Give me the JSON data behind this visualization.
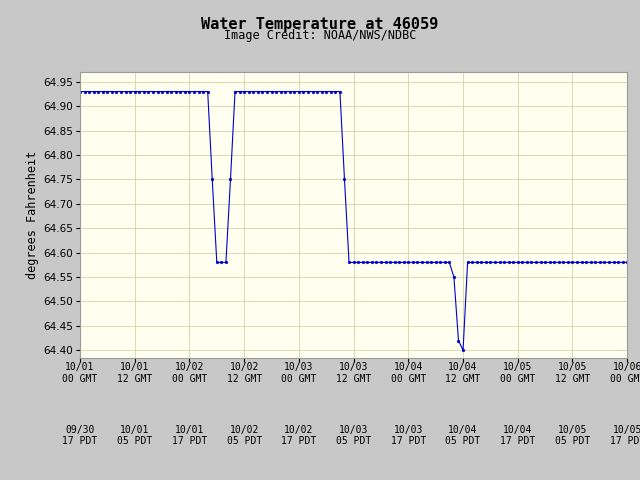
{
  "title": "Water Temperature at 46059",
  "subtitle": "Image Credit: NOAA/NWS/NDBC",
  "ylabel": "degrees Fahrenheit",
  "bg_color": "#fffff0",
  "outer_bg": "#c8c8c8",
  "line_color": "#0000cc",
  "marker": "o",
  "markersize": 2.0,
  "ylim": [
    64.385,
    64.97
  ],
  "yticks": [
    64.4,
    64.45,
    64.5,
    64.55,
    64.6,
    64.65,
    64.7,
    64.75,
    64.8,
    64.85,
    64.9,
    64.95
  ],
  "xtick_labels_gmt": [
    "10/01\n00 GMT",
    "10/01\n12 GMT",
    "10/02\n00 GMT",
    "10/02\n12 GMT",
    "10/03\n00 GMT",
    "10/03\n12 GMT",
    "10/04\n00 GMT",
    "10/04\n12 GMT",
    "10/05\n00 GMT",
    "10/05\n12 GMT",
    "10/06\n00 GMT"
  ],
  "xtick_labels_pdt": [
    "09/30\n17 PDT",
    "10/01\n05 PDT",
    "10/01\n17 PDT",
    "10/02\n05 PDT",
    "10/02\n17 PDT",
    "10/03\n05 PDT",
    "10/03\n17 PDT",
    "10/04\n05 PDT",
    "10/04\n17 PDT",
    "10/05\n05 PDT",
    "10/05\n17 PDT"
  ],
  "x_all": [
    0,
    1,
    2,
    3,
    4,
    5,
    6,
    7,
    8,
    9,
    10,
    11,
    12,
    13,
    14,
    15,
    16,
    17,
    18,
    19,
    20,
    21,
    22,
    23,
    24,
    25,
    26,
    27,
    28,
    29,
    30,
    31,
    32,
    33,
    34,
    35,
    36,
    37,
    38,
    39,
    40,
    41,
    42,
    43,
    44,
    45,
    46,
    47,
    48,
    49,
    50,
    51,
    52,
    53,
    54,
    55,
    56,
    57,
    58,
    59,
    60,
    61,
    62,
    63,
    64,
    65,
    66,
    67,
    68,
    69,
    70,
    71,
    72,
    73,
    74,
    75,
    76,
    77,
    78,
    79,
    80,
    81,
    82,
    83,
    84,
    85,
    86,
    87,
    88,
    89,
    90,
    91,
    92,
    93,
    94,
    95,
    96,
    97,
    98,
    99,
    100,
    101,
    102,
    103,
    104,
    105,
    106,
    107,
    108,
    109,
    110,
    111,
    112,
    113,
    114,
    115,
    116,
    117,
    118,
    119,
    120
  ],
  "y_all": [
    64.93,
    64.93,
    64.93,
    64.93,
    64.93,
    64.93,
    64.93,
    64.93,
    64.93,
    64.93,
    64.93,
    64.93,
    64.93,
    64.93,
    64.93,
    64.93,
    64.93,
    64.93,
    64.93,
    64.93,
    64.93,
    64.93,
    64.93,
    64.93,
    64.93,
    64.93,
    64.93,
    64.93,
    64.93,
    64.75,
    64.58,
    64.58,
    64.58,
    64.75,
    64.93,
    64.93,
    64.93,
    64.93,
    64.93,
    64.93,
    64.93,
    64.93,
    64.93,
    64.93,
    64.93,
    64.93,
    64.93,
    64.93,
    64.93,
    64.93,
    64.93,
    64.93,
    64.93,
    64.93,
    64.93,
    64.93,
    64.93,
    64.93,
    64.75,
    64.58,
    64.58,
    64.58,
    64.58,
    64.58,
    64.58,
    64.58,
    64.58,
    64.58,
    64.58,
    64.58,
    64.58,
    64.58,
    64.58,
    64.58,
    64.58,
    64.58,
    64.58,
    64.58,
    64.58,
    64.58,
    64.58,
    64.58,
    64.55,
    64.42,
    64.4,
    64.58,
    64.58,
    64.58,
    64.58,
    64.58,
    64.58,
    64.58,
    64.58,
    64.58,
    64.58,
    64.58,
    64.58,
    64.58,
    64.58,
    64.58,
    64.58,
    64.58,
    64.58,
    64.58,
    64.58,
    64.58,
    64.58,
    64.58,
    64.58,
    64.58,
    64.58,
    64.58,
    64.58,
    64.58,
    64.58,
    64.58,
    64.58,
    64.58,
    64.58,
    64.58,
    64.58
  ]
}
